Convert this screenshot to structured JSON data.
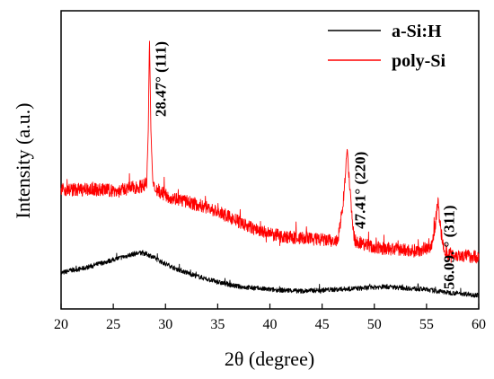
{
  "chart_data": {
    "type": "line",
    "xlabel": "2θ (degree)",
    "ylabel": "Intensity (a.u.)",
    "xlim": [
      20,
      60
    ],
    "ylim": [
      0,
      100
    ],
    "xticks": [
      20,
      25,
      30,
      35,
      40,
      45,
      50,
      55,
      60
    ],
    "x_tick_labels": [
      "20",
      "25",
      "30",
      "35",
      "40",
      "45",
      "50",
      "55",
      "60"
    ],
    "y_tick_labels_shown": false,
    "grid": false,
    "legend_position": "top-right",
    "series": [
      {
        "name": "a-Si:H",
        "color": "#000000",
        "noise": 0.8,
        "points": [
          [
            20,
            12
          ],
          [
            21,
            13
          ],
          [
            22,
            13.5
          ],
          [
            23,
            14.5
          ],
          [
            24,
            15.5
          ],
          [
            25,
            16.5
          ],
          [
            26,
            17.5
          ],
          [
            27,
            18.5
          ],
          [
            27.8,
            18.8
          ],
          [
            28.5,
            18
          ],
          [
            29.5,
            16
          ],
          [
            31,
            13.5
          ],
          [
            33,
            11
          ],
          [
            35,
            9
          ],
          [
            37,
            7.5
          ],
          [
            40,
            6.5
          ],
          [
            43,
            6
          ],
          [
            46,
            6.5
          ],
          [
            49,
            7
          ],
          [
            51,
            7.5
          ],
          [
            53,
            7
          ],
          [
            55,
            6.5
          ],
          [
            57,
            5.5
          ],
          [
            59,
            5
          ],
          [
            60,
            4.5
          ]
        ]
      },
      {
        "name": "poly-Si",
        "color": "#ff0000",
        "noise": 2.2,
        "points": [
          [
            20,
            40
          ],
          [
            22,
            40
          ],
          [
            24,
            40
          ],
          [
            25.5,
            39.5
          ],
          [
            26.5,
            40.5
          ],
          [
            27.5,
            41
          ],
          [
            28.2,
            42
          ],
          [
            28.35,
            60
          ],
          [
            28.47,
            91
          ],
          [
            28.6,
            60
          ],
          [
            28.8,
            41
          ],
          [
            30,
            38
          ],
          [
            32,
            36
          ],
          [
            34,
            34
          ],
          [
            36,
            31
          ],
          [
            38,
            27.5
          ],
          [
            40,
            25
          ],
          [
            42,
            24
          ],
          [
            44,
            23.5
          ],
          [
            45.5,
            23
          ],
          [
            46.5,
            22.5
          ],
          [
            47.0,
            35
          ],
          [
            47.41,
            54
          ],
          [
            47.7,
            38
          ],
          [
            48.1,
            23
          ],
          [
            50,
            20.5
          ],
          [
            52,
            20
          ],
          [
            54,
            19.5
          ],
          [
            55.5,
            21
          ],
          [
            55.9,
            30
          ],
          [
            56.09,
            36
          ],
          [
            56.3,
            28
          ],
          [
            56.7,
            19
          ],
          [
            58,
            18
          ],
          [
            60,
            17.5
          ]
        ]
      }
    ],
    "annotations": [
      {
        "text": "28.47° (111)",
        "x": 28.47,
        "y": 91
      },
      {
        "text": "47.41° (220)",
        "x": 47.41,
        "y": 54
      },
      {
        "text": "56.09. ° (311)",
        "x": 56.09,
        "y": 36
      }
    ]
  }
}
